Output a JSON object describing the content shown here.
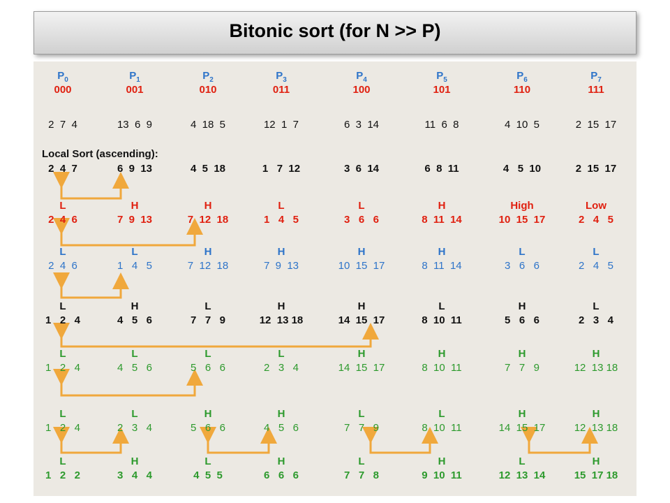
{
  "title": "Bitonic sort   (for N >> P)",
  "processors": [
    {
      "name": "P",
      "sub": "0",
      "bits": "000"
    },
    {
      "name": "P",
      "sub": "1",
      "bits": "001"
    },
    {
      "name": "P",
      "sub": "2",
      "bits": "010"
    },
    {
      "name": "P",
      "sub": "3",
      "bits": "011"
    },
    {
      "name": "P",
      "sub": "4",
      "bits": "100"
    },
    {
      "name": "P",
      "sub": "5",
      "bits": "101"
    },
    {
      "name": "P",
      "sub": "6",
      "bits": "110"
    },
    {
      "name": "P",
      "sub": "7",
      "bits": "111"
    }
  ],
  "initial_data": [
    "2  7  4",
    "13  6  9",
    "4  18  5",
    "12  1  7",
    "6  3  14",
    "11  6  8",
    "4  10  5",
    "2  15  17"
  ],
  "local_sort_label": "Local Sort (ascending):",
  "local_sorted": [
    "2  4  7",
    "6  9  13",
    "4  5  18",
    "1   7  12",
    "3  6  14",
    "6  8  11",
    "4   5  10",
    "2  15  17"
  ],
  "stages": [
    {
      "labels": [
        "L",
        "H",
        "H",
        "L",
        "L",
        "H",
        "High",
        "Low"
      ],
      "data": [
        "2  4  6",
        "7  9  13",
        "7  12  18",
        "1   4   5",
        "3   6   6",
        "8  11  14",
        "10  15  17",
        "2   4   5"
      ],
      "color": "red",
      "bold": true
    },
    {
      "labels": [
        "L",
        "L",
        "H",
        "H",
        "H",
        "H",
        "L",
        "L"
      ],
      "data": [
        "2  4  6",
        "1   4   5",
        "7  12  18",
        "7  9  13",
        "10  15  17",
        "8  11  14",
        "3   6   6",
        "2   4   5"
      ],
      "color": "blue",
      "bold": false
    },
    {
      "labels": [
        "L",
        "H",
        "L",
        "H",
        "H",
        "L",
        "H",
        "L"
      ],
      "data": [
        "1   2   4",
        "4   5   6",
        "7   7   9",
        "12  13 18",
        "14  15  17",
        "8  10  11",
        "5   6   6",
        "2   3   4"
      ],
      "color": "black",
      "bold": true
    },
    {
      "labels": [
        "L",
        "L",
        "L",
        "L",
        "H",
        "H",
        "H",
        "H"
      ],
      "data": [
        "1   2   4",
        "4   5   6",
        "5   6   6",
        "2   3   4",
        "14  15  17",
        "8  10  11",
        "7   7   9",
        "12  13 18"
      ],
      "color": "green",
      "bold": false
    },
    {
      "labels": [
        "L",
        "L",
        "H",
        "H",
        "L",
        "L",
        "H",
        "H"
      ],
      "data": [
        "1   2   4",
        "2   3   4",
        "5   6   6",
        "4   5   6",
        "7   7   9",
        "8  10  11",
        "14  15  17",
        "12  13 18"
      ],
      "color": "green",
      "bold": false
    },
    {
      "labels": [
        "L",
        "H",
        "L",
        "H",
        "L",
        "H",
        "L",
        "H"
      ],
      "data": [
        "1   2   2",
        "3   4   4",
        "4  5  5",
        "6   6   6",
        "7   7   8",
        "9  10  11",
        "12  13  14",
        "15  17 18"
      ],
      "color": "green",
      "bold": true
    }
  ],
  "colors": {
    "arrow": "#f0a83c",
    "blue": "#2e74c9",
    "red": "#e02010",
    "green": "#2d9a2d"
  }
}
